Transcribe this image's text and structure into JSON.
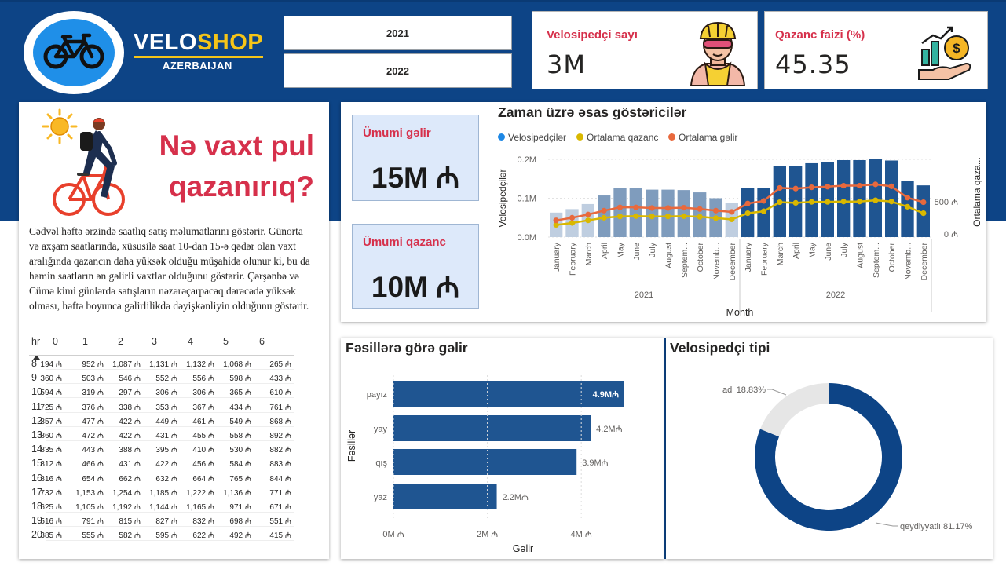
{
  "brand": {
    "name_part1": "VELO",
    "name_part2": "SHOP",
    "subtitle": "AZERBAIJAN",
    "logo_icon": "bicycle-icon"
  },
  "year_slicer": {
    "options": [
      "2021",
      "2022"
    ]
  },
  "kpi_top": [
    {
      "title": "Velosipedçi sayı",
      "value": "3M",
      "icon": "cyclist-avatar-icon"
    },
    {
      "title": "Qazanc faizi (%)",
      "value": "45.35",
      "icon": "money-growth-icon"
    }
  ],
  "story": {
    "headline_line1": "Nə vaxt pul",
    "headline_line2": "qazanırıq?",
    "description": "Cədvəl həftə ərzində saatlıq satış məlumatlarını göstərir. Günorta və axşam saatlarında, xüsusilə saat 10-dan 15-ə qədər olan vaxt aralığında qazancın daha yüksək olduğu müşahidə olunur ki, bu da həmin saatların ən gəlirli vaxtlar olduğunu göstərir. Çərşənbə və Cümə kimi günlərdə satışların nəzərəçarpacaq dərəcədə yüksək olması, həftə boyunca gəlirlilikdə dəyişkənliyin olduğunu göstərir."
  },
  "matrix": {
    "row_header": "hr",
    "columns": [
      "0",
      "1",
      "2",
      "3",
      "4",
      "5",
      "6"
    ],
    "rows": [
      {
        "hr": "8",
        "cells": [
          "194 ₼",
          "952 ₼",
          "1,087 ₼",
          "1,131 ₼",
          "1,132 ₼",
          "1,068 ₼",
          "265 ₼"
        ]
      },
      {
        "hr": "9",
        "cells": [
          "360 ₼",
          "503 ₼",
          "546 ₼",
          "552 ₼",
          "556 ₼",
          "598 ₼",
          "433 ₼"
        ]
      },
      {
        "hr": "10",
        "cells": [
          "594 ₼",
          "319 ₼",
          "297 ₼",
          "306 ₼",
          "306 ₼",
          "365 ₼",
          "610 ₼"
        ]
      },
      {
        "hr": "11",
        "cells": [
          "725 ₼",
          "376 ₼",
          "338 ₼",
          "353 ₼",
          "367 ₼",
          "434 ₼",
          "761 ₼"
        ]
      },
      {
        "hr": "12",
        "cells": [
          "857 ₼",
          "477 ₼",
          "422 ₼",
          "449 ₼",
          "461 ₼",
          "549 ₼",
          "868 ₼"
        ]
      },
      {
        "hr": "13",
        "cells": [
          "860 ₼",
          "472 ₼",
          "422 ₼",
          "431 ₼",
          "455 ₼",
          "558 ₼",
          "892 ₼"
        ]
      },
      {
        "hr": "14",
        "cells": [
          "835 ₼",
          "443 ₼",
          "388 ₼",
          "395 ₼",
          "410 ₼",
          "530 ₼",
          "882 ₼"
        ]
      },
      {
        "hr": "15",
        "cells": [
          "812 ₼",
          "466 ₼",
          "431 ₼",
          "422 ₼",
          "456 ₼",
          "584 ₼",
          "883 ₼"
        ]
      },
      {
        "hr": "16",
        "cells": [
          "816 ₼",
          "654 ₼",
          "662 ₼",
          "632 ₼",
          "664 ₼",
          "765 ₼",
          "844 ₼"
        ]
      },
      {
        "hr": "17",
        "cells": [
          "732 ₼",
          "1,153 ₼",
          "1,254 ₼",
          "1,185 ₼",
          "1,222 ₼",
          "1,136 ₼",
          "771 ₼"
        ]
      },
      {
        "hr": "18",
        "cells": [
          "625 ₼",
          "1,105 ₼",
          "1,192 ₼",
          "1,144 ₼",
          "1,165 ₼",
          "971 ₼",
          "671 ₼"
        ]
      },
      {
        "hr": "19",
        "cells": [
          "516 ₼",
          "791 ₼",
          "815 ₼",
          "827 ₼",
          "832 ₼",
          "698 ₼",
          "551 ₼"
        ]
      },
      {
        "hr": "20",
        "cells": [
          "385 ₼",
          "555 ₼",
          "582 ₼",
          "595 ₼",
          "622 ₼",
          "492 ₼",
          "415 ₼"
        ]
      }
    ]
  },
  "kpi_boxes": [
    {
      "title": "Ümumi gəlir",
      "value": "15M ₼"
    },
    {
      "title": "Ümumi qazanc",
      "value": "10M ₼"
    }
  ],
  "colors": {
    "band": "#0d4486",
    "bar_dark": "#1f5591",
    "bar_mid": "#7f9cbd",
    "bar_light": "#bfcee0",
    "line_profit": "#d9b800",
    "line_revenue": "#e8693d",
    "accent_red": "#d6304b",
    "donut_main": "#0d4486",
    "donut_other": "#e6e6e6"
  },
  "chart_data": [
    {
      "type": "bar",
      "title": "Zaman üzrə əsas göstəricilər",
      "xlabel": "Month",
      "ylabel": "Velosipedçilər",
      "y2label": "Ortalama qaza...",
      "legend": [
        "Velosipedçilər",
        "Ortalama qazanc",
        "Ortalama gəlir"
      ],
      "legend_placement": "top-left",
      "ylim": [
        0,
        200000
      ],
      "y_ticks": [
        "0.0M",
        "0.1M",
        "0.2M"
      ],
      "y2_ticks": [
        "0 ₼",
        "500 ₼"
      ],
      "year_groups": [
        "2021",
        "2022"
      ],
      "categories": [
        "January",
        "February",
        "March",
        "April",
        "May",
        "June",
        "July",
        "August",
        "Septem...",
        "October",
        "Novemb...",
        "December",
        "January",
        "February",
        "March",
        "April",
        "May",
        "June",
        "July",
        "August",
        "Septem...",
        "October",
        "Novemb...",
        "December"
      ],
      "series": [
        {
          "name": "Velosipedçilər",
          "values": [
            63000,
            72000,
            85000,
            107000,
            127000,
            127000,
            122000,
            122000,
            121000,
            115000,
            100000,
            88000,
            127000,
            127000,
            183000,
            183000,
            190000,
            192000,
            198000,
            198000,
            202000,
            197000,
            145000,
            133000
          ]
        },
        {
          "name": "Ortalama qazanc",
          "values": [
            140,
            170,
            210,
            250,
            270,
            275,
            270,
            270,
            275,
            265,
            245,
            225,
            320,
            350,
            490,
            480,
            495,
            495,
            500,
            500,
            520,
            500,
            420,
            320
          ]
        },
        {
          "name": "Ortalama gəlir",
          "values": [
            210,
            250,
            300,
            360,
            410,
            410,
            400,
            400,
            405,
            385,
            360,
            340,
            470,
            510,
            710,
            700,
            720,
            730,
            745,
            745,
            765,
            735,
            560,
            490
          ]
        }
      ],
      "grid": true
    },
    {
      "type": "bar",
      "title": "Fəsillərə görə gəlir",
      "xlabel": "Gəlir",
      "ylabel": "Fəsillər",
      "orientation": "horizontal",
      "categories": [
        "payız",
        "yay",
        "qış",
        "yaz"
      ],
      "values": [
        4.9,
        4.2,
        3.9,
        2.2
      ],
      "data_labels": [
        "4.9M₼",
        "4.2M₼",
        "3.9M₼",
        "2.2M₼"
      ],
      "x_ticks": [
        "0M ₼",
        "2M ₼",
        "4M ₼"
      ],
      "xlim": [
        0,
        5
      ]
    },
    {
      "type": "pie",
      "title": "Velosipedçi tipi",
      "categories": [
        "qeydiyyatlı",
        "adi"
      ],
      "values": [
        81.17,
        18.83
      ],
      "labels": [
        "qeydiyyatlı 81.17%",
        "adi 18.83%"
      ]
    }
  ]
}
